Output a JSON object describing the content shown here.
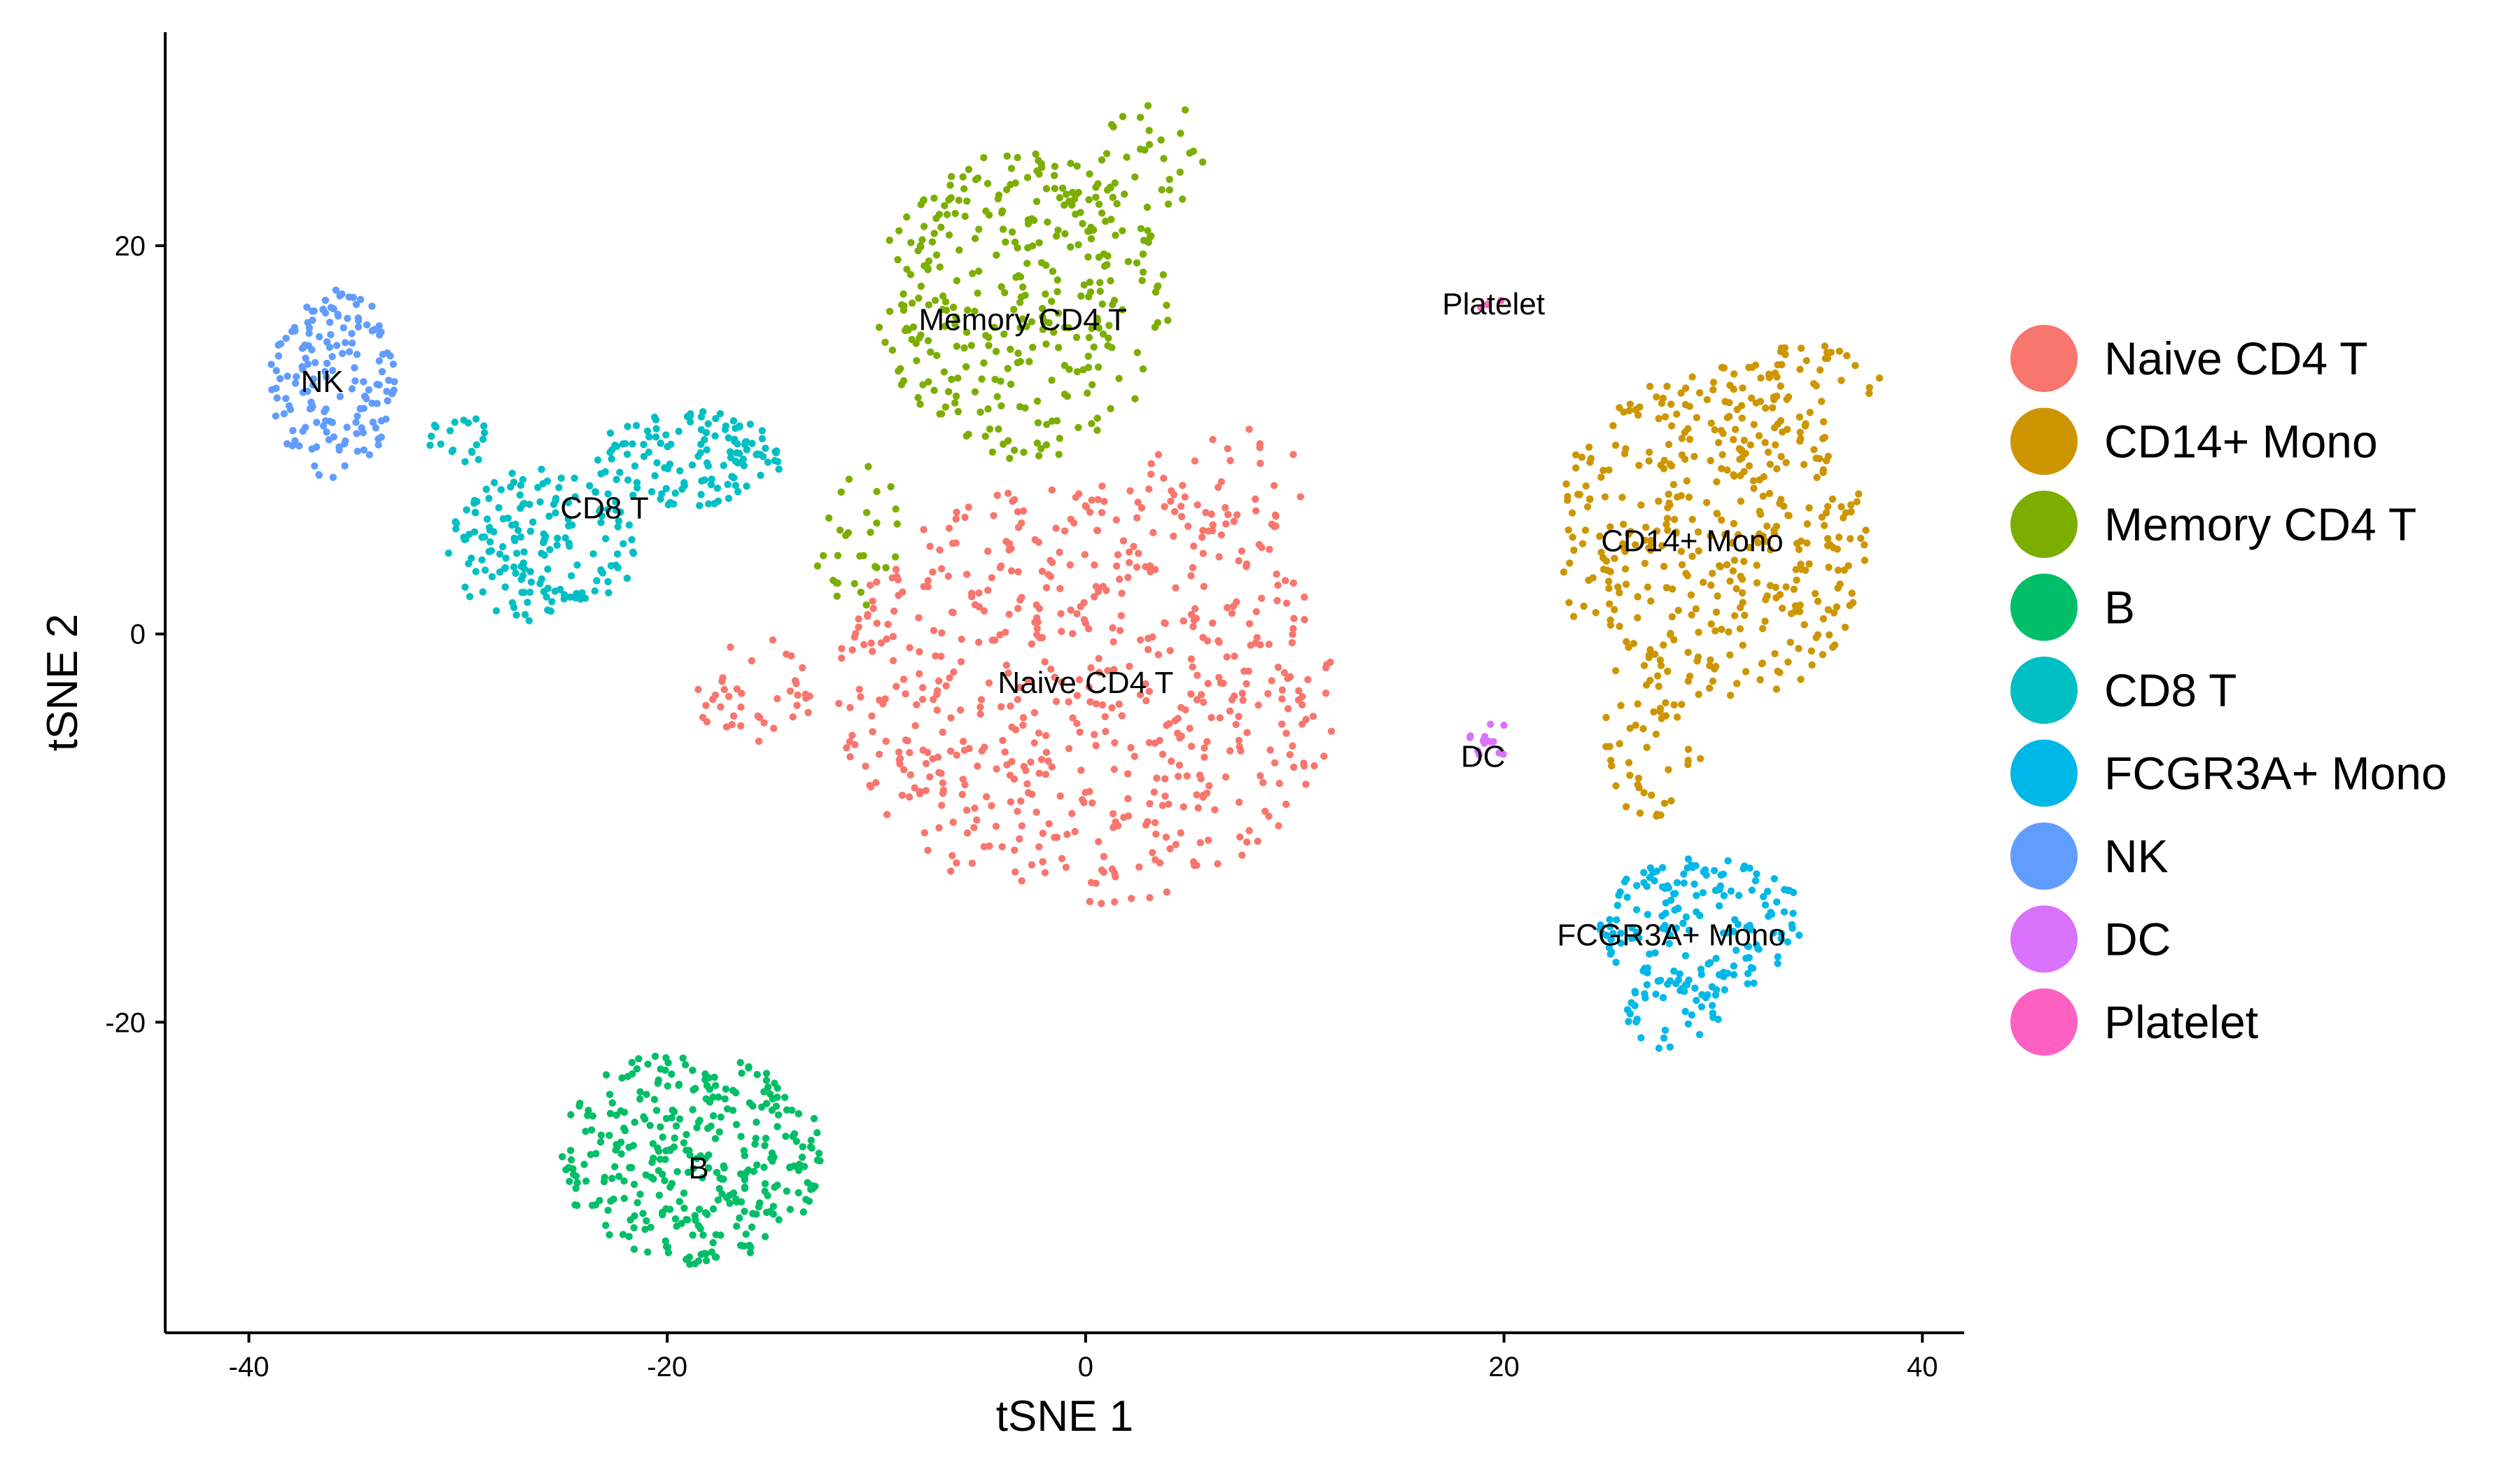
{
  "chart_data": {
    "type": "scatter",
    "title": "",
    "xlabel": "tSNE 1",
    "ylabel": "tSNE 2",
    "xlim": [
      -44,
      42
    ],
    "ylim": [
      -36,
      31
    ],
    "x_ticks": [
      -40,
      -20,
      0,
      20,
      40
    ],
    "y_ticks": [
      20,
      0,
      -20
    ],
    "grid": false,
    "legend_position": "right",
    "series": [
      {
        "name": "Naive CD4 T",
        "color": "#F8766D",
        "regions": [
          {
            "cx": 0,
            "cy": -3,
            "rx": 12,
            "ry": 11,
            "n": 600
          },
          {
            "cx": -16,
            "cy": -3,
            "rx": 3,
            "ry": 3,
            "n": 40
          },
          {
            "cx": 7,
            "cy": 8,
            "rx": 4,
            "ry": 3,
            "n": 40
          }
        ],
        "label": {
          "text": "Naive CD4 T",
          "x": 0,
          "y": -2.5
        }
      },
      {
        "name": "CD14+ Mono",
        "color": "#CD9600",
        "regions": [
          {
            "cx": 30,
            "cy": 5,
            "rx": 7.5,
            "ry": 9,
            "n": 420
          },
          {
            "cx": 27,
            "cy": -6,
            "rx": 2.5,
            "ry": 3.5,
            "n": 40
          },
          {
            "cx": 34,
            "cy": 13,
            "rx": 4,
            "ry": 2,
            "n": 40
          }
        ],
        "label": {
          "text": "CD14+ Mono",
          "x": 29,
          "y": 4.8
        }
      },
      {
        "name": "Memory CD4 T",
        "color": "#7CAE00",
        "regions": [
          {
            "cx": -3,
            "cy": 17,
            "rx": 7,
            "ry": 8,
            "n": 340
          },
          {
            "cx": 3,
            "cy": 25,
            "rx": 3,
            "ry": 3.5,
            "n": 30
          },
          {
            "cx": -11,
            "cy": 5,
            "rx": 2.5,
            "ry": 4,
            "n": 30
          }
        ],
        "label": {
          "text": "Memory CD4 T",
          "x": -3,
          "y": 16.2
        }
      },
      {
        "name": "B",
        "color": "#00BE67",
        "regions": [
          {
            "cx": -19,
            "cy": -27,
            "rx": 6.5,
            "ry": 5.5,
            "n": 340
          }
        ],
        "label": {
          "text": "B",
          "x": -18.5,
          "y": -27.5
        }
      },
      {
        "name": "CD8 T",
        "color": "#00BFC4",
        "regions": [
          {
            "cx": -26,
            "cy": 4.5,
            "rx": 4.5,
            "ry": 4,
            "n": 170
          },
          {
            "cx": -19,
            "cy": 9,
            "rx": 4.5,
            "ry": 2.5,
            "n": 130
          },
          {
            "cx": -30,
            "cy": 10,
            "rx": 1.5,
            "ry": 1.5,
            "n": 20
          }
        ],
        "label": {
          "text": "CD8 T",
          "x": -23,
          "y": 6.5
        }
      },
      {
        "name": "FCGR3A+ Mono",
        "color": "#00B8E7",
        "regions": [
          {
            "cx": 29.5,
            "cy": -15,
            "rx": 5,
            "ry": 3.5,
            "n": 170
          },
          {
            "cx": 28,
            "cy": -19.5,
            "rx": 2.5,
            "ry": 2,
            "n": 40
          }
        ],
        "label": {
          "text": "FCGR3A+ Mono",
          "x": 28,
          "y": -15.5
        }
      },
      {
        "name": "NK",
        "color": "#619CFF",
        "regions": [
          {
            "cx": -36,
            "cy": 13,
            "rx": 3,
            "ry": 5,
            "n": 160
          }
        ],
        "label": {
          "text": "NK",
          "x": -36.5,
          "y": 13
        }
      },
      {
        "name": "DC",
        "color": "#DB72FB",
        "regions": [
          {
            "cx": 19.5,
            "cy": -5.5,
            "rx": 1.4,
            "ry": 0.9,
            "n": 14
          }
        ],
        "label": {
          "text": "DC",
          "x": 19,
          "y": -6.3
        }
      },
      {
        "name": "Platelet",
        "color": "#FF61C3",
        "regions": [
          {
            "cx": 19.5,
            "cy": 17,
            "rx": 0.8,
            "ry": 0.6,
            "n": 3
          }
        ],
        "label": {
          "text": "Platelet",
          "x": 19.5,
          "y": 17
        }
      }
    ]
  }
}
